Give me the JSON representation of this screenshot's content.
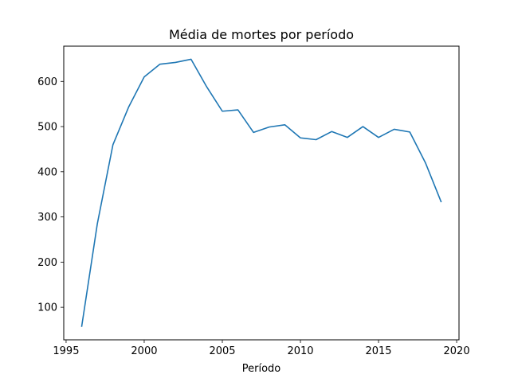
{
  "chart_data": {
    "type": "line",
    "title": "Média de mortes por período",
    "xlabel": "Período",
    "ylabel": "",
    "xlim": [
      1994.85,
      2020.15
    ],
    "ylim": [
      28,
      678
    ],
    "xticks": [
      1995,
      2000,
      2005,
      2010,
      2015,
      2020
    ],
    "yticks": [
      100,
      200,
      300,
      400,
      500,
      600
    ],
    "grid": false,
    "series": [
      {
        "name": "",
        "color": "#1f77b4",
        "x": [
          1996,
          1997,
          1998,
          1999,
          2000,
          2001,
          2002,
          2003,
          2004,
          2005,
          2006,
          2007,
          2008,
          2009,
          2010,
          2011,
          2012,
          2013,
          2014,
          2015,
          2016,
          2017,
          2018,
          2019
        ],
        "y": [
          58,
          285,
          460,
          543,
          610,
          638,
          642,
          649,
          588,
          534,
          537,
          487,
          499,
          504,
          475,
          471,
          489,
          476,
          500,
          476,
          494,
          488,
          420,
          334
        ]
      }
    ]
  }
}
